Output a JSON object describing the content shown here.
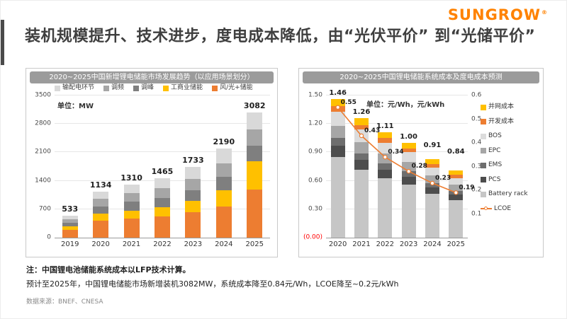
{
  "logo": {
    "text": "SUNGROW",
    "registered": "®",
    "color": "#ff8200"
  },
  "title": "装机规模提升、技术进步，度电成本降低，由“光伏平价” 到“光储平价”",
  "notes": {
    "line1": "注：中国锂电池储能系统成本以LFP技术计算。",
    "line2": "预计至2025年，中国锂电储能市场新增装机3082MW，系统成本降至0.84元/Wh，LCOE降至~0.2元/kWh",
    "source": "数据来源：BNEF、CNESA"
  },
  "chart_data": [
    {
      "type": "bar",
      "stacked": true,
      "title": "2020~2025中国新增锂电储能市场发展趋势（以应用场景划分）",
      "unit_label": "单位：MW",
      "categories": [
        "2019",
        "2020",
        "2021",
        "2022",
        "2023",
        "2024",
        "2025"
      ],
      "totals": [
        533,
        1134,
        1310,
        1465,
        1733,
        2190,
        3082
      ],
      "total_labels": [
        "533",
        "1134",
        "1310",
        "1465",
        "1733",
        "2190",
        "3082"
      ],
      "ylim": [
        0,
        3500
      ],
      "yticks": [
        0,
        700,
        1400,
        2100,
        2800,
        3500
      ],
      "legend": [
        {
          "label": "输配电环节",
          "color": "#D9D9D9"
        },
        {
          "label": "调频",
          "color": "#A6A6A6"
        },
        {
          "label": "调峰",
          "color": "#7F7F7F"
        },
        {
          "label": "工商业储能",
          "color": "#FFC000"
        },
        {
          "label": "风/光+储能",
          "color": "#ED7D31"
        }
      ],
      "series": [
        {
          "name": "风/光+储能",
          "color": "#ED7D31",
          "values": [
            200,
            420,
            470,
            520,
            620,
            760,
            1180
          ]
        },
        {
          "name": "工商业储能",
          "color": "#FFC000",
          "values": [
            75,
            170,
            200,
            230,
            280,
            400,
            700
          ]
        },
        {
          "name": "调峰",
          "color": "#7F7F7F",
          "values": [
            85,
            180,
            210,
            230,
            270,
            330,
            380
          ]
        },
        {
          "name": "调频",
          "color": "#A6A6A6",
          "values": [
            90,
            190,
            220,
            245,
            280,
            340,
            400
          ]
        },
        {
          "name": "输配电环节",
          "color": "#D9D9D9",
          "values": [
            83,
            174,
            210,
            240,
            283,
            360,
            422
          ]
        }
      ]
    },
    {
      "type": "bar",
      "stacked": true,
      "overlay_line": true,
      "title": "2020~2025中国锂电储能系统成本及度电成本预测",
      "unit_label": "单位：元/Wh，元/kWh",
      "categories": [
        "2020",
        "2021",
        "2022",
        "2023",
        "2024",
        "2025"
      ],
      "totals": [
        1.46,
        1.26,
        1.11,
        1.0,
        0.91,
        0.84
      ],
      "total_labels": [
        "1.46",
        "1.26",
        "1.11",
        "1.00",
        "0.91",
        "0.84"
      ],
      "left_axis": {
        "max": 1.5,
        "tick_values": [
          0.3,
          0.6,
          0.9,
          1.2,
          1.5
        ],
        "ticks": [
          "0.30",
          "0.60",
          "0.90",
          "1.20",
          "1.50"
        ],
        "zero_label": "(0.00)",
        "zero_color": "#FF0000"
      },
      "right_axis": {
        "max": 0.6,
        "ticks": [
          0.1,
          0.2,
          0.3,
          0.4,
          0.5,
          0.6
        ]
      },
      "series": [
        {
          "name": "Battery rack",
          "color": "#C6C6C6",
          "values": [
            0.85,
            0.72,
            0.63,
            0.56,
            0.51,
            0.47
          ]
        },
        {
          "name": "PCS",
          "color": "#4D4D4D",
          "values": [
            0.12,
            0.1,
            0.09,
            0.08,
            0.07,
            0.07
          ]
        },
        {
          "name": "EMS",
          "color": "#6E6E6E",
          "values": [
            0.08,
            0.07,
            0.06,
            0.06,
            0.05,
            0.05
          ]
        },
        {
          "name": "EPC",
          "color": "#A6A6A6",
          "values": [
            0.13,
            0.12,
            0.11,
            0.1,
            0.09,
            0.08
          ]
        },
        {
          "name": "BOS",
          "color": "#DCDCDC",
          "values": [
            0.15,
            0.13,
            0.11,
            0.1,
            0.09,
            0.08
          ]
        },
        {
          "name": "开发成本",
          "color": "#ED7D31",
          "values": [
            0.06,
            0.05,
            0.05,
            0.04,
            0.04,
            0.04
          ]
        },
        {
          "name": "并网成本",
          "color": "#FFC000",
          "values": [
            0.07,
            0.07,
            0.06,
            0.06,
            0.06,
            0.05
          ]
        }
      ],
      "line": {
        "name": "LCOE",
        "color": "#ED7D31",
        "values": [
          0.55,
          0.43,
          0.34,
          0.28,
          0.23,
          0.19
        ],
        "labels": [
          "0.55",
          "0.43",
          "0.34",
          "0.28",
          "0.23",
          "0.19"
        ]
      },
      "legend": [
        {
          "label": "并网成本",
          "color": "#FFC000",
          "type": "box"
        },
        {
          "label": "开发成本",
          "color": "#ED7D31",
          "type": "box"
        },
        {
          "label": "BOS",
          "color": "#DCDCDC",
          "type": "box"
        },
        {
          "label": "EPC",
          "color": "#A6A6A6",
          "type": "box"
        },
        {
          "label": "EMS",
          "color": "#6E6E6E",
          "type": "box"
        },
        {
          "label": "PCS",
          "color": "#4D4D4D",
          "type": "box"
        },
        {
          "label": "Battery rack",
          "color": "#C6C6C6",
          "type": "box"
        },
        {
          "label": "LCOE",
          "color": "#ED7D31",
          "type": "line"
        }
      ]
    }
  ]
}
